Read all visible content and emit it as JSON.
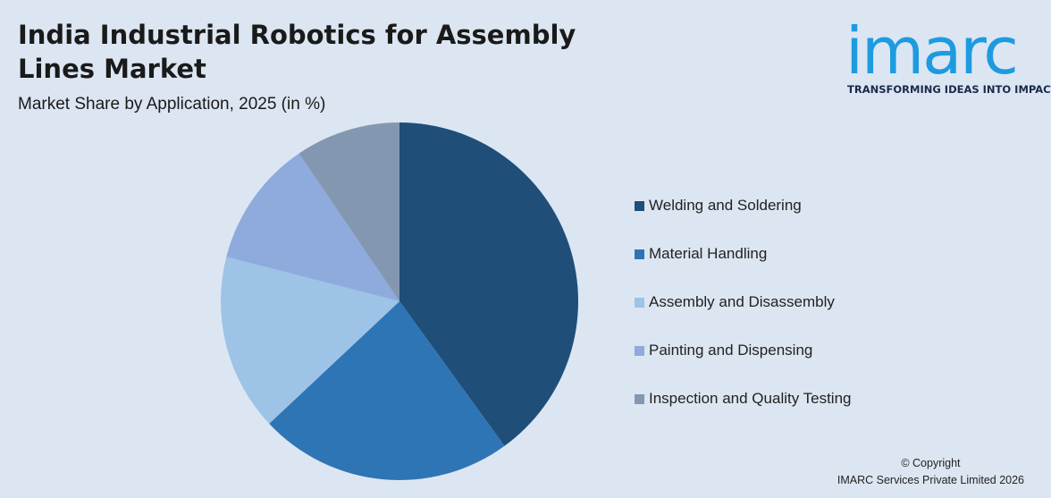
{
  "header": {
    "title": "India Industrial Robotics for Assembly Lines Market",
    "subtitle": "Market Share by Application, 2025 (in %)"
  },
  "logo": {
    "word": "imarc",
    "tagline": "TRANSFORMING IDEAS INTO IMPACT"
  },
  "footer": {
    "copyright_line1": "© Copyright",
    "copyright_line2": "IMARC Services Private Limited 2026"
  },
  "chart_data": {
    "type": "pie",
    "title": "India Industrial Robotics for Assembly Lines Market",
    "subtitle": "Market Share by Application, 2025 (in %)",
    "legend_position": "right",
    "start_angle": "12 o'clock",
    "direction": "clockwise",
    "slices": [
      {
        "label": "Welding and Soldering",
        "value": 40,
        "color": "#1f4e79"
      },
      {
        "label": "Material Handling",
        "value": 23,
        "color": "#2e75b6"
      },
      {
        "label": "Assembly and Disassembly",
        "value": 16,
        "color": "#9dc3e6"
      },
      {
        "label": "Painting and Dispensing",
        "value": 11.5,
        "color": "#8faadc"
      },
      {
        "label": "Inspection and Quality Testing",
        "value": 9.5,
        "color": "#8497b0"
      }
    ]
  }
}
